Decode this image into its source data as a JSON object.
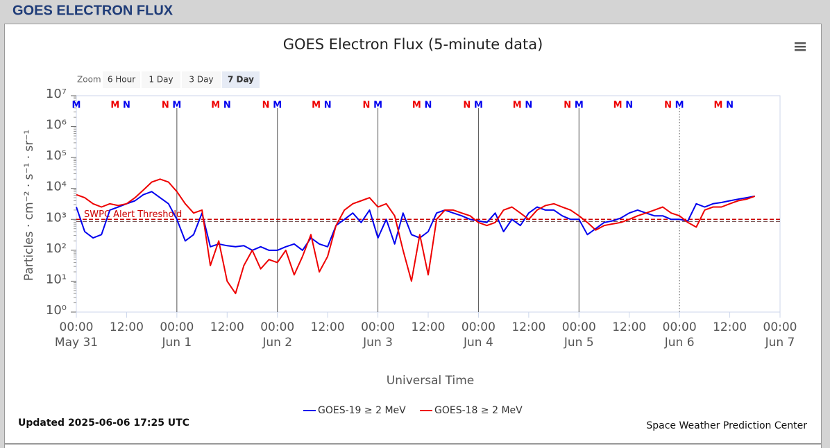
{
  "header": {
    "title": "GOES ELECTRON FLUX"
  },
  "range_selector": {
    "label": "Zoom",
    "buttons": [
      "6 Hour",
      "1 Day",
      "3 Day",
      "7 Day"
    ],
    "selected": 3
  },
  "chart_data": {
    "type": "line",
    "title": "GOES Electron Flux (5-minute data)",
    "x_label": "Universal Time",
    "y_label": "Particles · cm⁻² · s⁻¹ · sr⁻¹",
    "log_scale": true,
    "ylim": [
      1,
      10000000
    ],
    "yticks": [
      {
        "value": 1,
        "label": "10⁰"
      },
      {
        "value": 10,
        "label": "10¹"
      },
      {
        "value": 100,
        "label": "10²"
      },
      {
        "value": 1000,
        "label": "10³"
      },
      {
        "value": 10000,
        "label": "10⁴"
      },
      {
        "value": 100000,
        "label": "10⁵"
      },
      {
        "value": 1000000,
        "label": "10⁶"
      },
      {
        "value": 10000000,
        "label": "10⁷"
      }
    ],
    "xlim": [
      "05-31 00:00",
      "06-07 00:00"
    ],
    "xticks": [
      {
        "value": "05-31 00:00",
        "label": "00:00",
        "date": "May 31"
      },
      {
        "value": "05-31 12:00",
        "label": "12:00"
      },
      {
        "value": "06-01 00:00",
        "label": "00:00",
        "date": "Jun 1"
      },
      {
        "value": "06-01 12:00",
        "label": "12:00"
      },
      {
        "value": "06-02 00:00",
        "label": "00:00",
        "date": "Jun 2"
      },
      {
        "value": "06-02 12:00",
        "label": "12:00"
      },
      {
        "value": "06-03 00:00",
        "label": "00:00",
        "date": "Jun 3"
      },
      {
        "value": "06-03 12:00",
        "label": "12:00"
      },
      {
        "value": "06-04 00:00",
        "label": "00:00",
        "date": "Jun 4"
      },
      {
        "value": "06-04 12:00",
        "label": "12:00"
      },
      {
        "value": "06-05 00:00",
        "label": "00:00",
        "date": "Jun 5"
      },
      {
        "value": "06-05 12:00",
        "label": "12:00"
      },
      {
        "value": "06-06 00:00",
        "label": "00:00",
        "date": "Jun 6"
      },
      {
        "value": "06-06 12:00",
        "label": "12:00"
      },
      {
        "value": "06-07 00:00",
        "label": "00:00",
        "date": "Jun 7"
      }
    ],
    "x": [
      "05-31 00:00",
      "05-31 02:00",
      "05-31 04:00",
      "05-31 06:00",
      "05-31 08:00",
      "05-31 10:00",
      "05-31 12:00",
      "05-31 14:00",
      "05-31 16:00",
      "05-31 18:00",
      "05-31 20:00",
      "05-31 22:00",
      "06-01 00:00",
      "06-01 02:00",
      "06-01 04:00",
      "06-01 06:00",
      "06-01 08:00",
      "06-01 10:00",
      "06-01 12:00",
      "06-01 14:00",
      "06-01 16:00",
      "06-01 18:00",
      "06-01 20:00",
      "06-01 22:00",
      "06-02 00:00",
      "06-02 02:00",
      "06-02 04:00",
      "06-02 06:00",
      "06-02 08:00",
      "06-02 10:00",
      "06-02 12:00",
      "06-02 14:00",
      "06-02 16:00",
      "06-02 18:00",
      "06-02 20:00",
      "06-02 22:00",
      "06-03 00:00",
      "06-03 02:00",
      "06-03 04:00",
      "06-03 06:00",
      "06-03 08:00",
      "06-03 10:00",
      "06-03 12:00",
      "06-03 14:00",
      "06-03 16:00",
      "06-03 18:00",
      "06-03 20:00",
      "06-03 22:00",
      "06-04 00:00",
      "06-04 02:00",
      "06-04 04:00",
      "06-04 06:00",
      "06-04 08:00",
      "06-04 10:00",
      "06-04 12:00",
      "06-04 14:00",
      "06-04 16:00",
      "06-04 18:00",
      "06-04 20:00",
      "06-04 22:00",
      "06-05 00:00",
      "06-05 02:00",
      "06-05 04:00",
      "06-05 06:00",
      "06-05 08:00",
      "06-05 10:00",
      "06-05 12:00",
      "06-05 14:00",
      "06-05 16:00",
      "06-05 18:00",
      "06-05 20:00",
      "06-05 22:00",
      "06-06 00:00",
      "06-06 02:00",
      "06-06 04:00",
      "06-06 06:00",
      "06-06 08:00",
      "06-06 10:00",
      "06-06 12:00",
      "06-06 14:00",
      "06-06 16:00",
      "06-06 18:00"
    ],
    "series": [
      {
        "name": "GOES-19 ≥ 2 MeV",
        "color": "#0000ee",
        "values": [
          2500,
          400,
          250,
          320,
          2000,
          2500,
          3200,
          4000,
          6300,
          7900,
          5000,
          3200,
          1000,
          200,
          320,
          1600,
          130,
          160,
          140,
          130,
          140,
          100,
          130,
          100,
          100,
          130,
          160,
          100,
          250,
          160,
          130,
          630,
          1000,
          1600,
          790,
          2000,
          250,
          1000,
          160,
          1600,
          320,
          250,
          400,
          1600,
          2000,
          1600,
          1300,
          1000,
          890,
          790,
          1600,
          400,
          1000,
          630,
          1600,
          2500,
          2000,
          2000,
          1300,
          1000,
          1000,
          320,
          500,
          790,
          890,
          1100,
          1600,
          2000,
          1600,
          1300,
          1300,
          1000,
          1000,
          890,
          3200,
          2500,
          3200,
          3500,
          4000,
          4500,
          5000,
          5600
        ],
        "markers": [
          {
            "label": "M",
            "x": "05-31 00:00"
          },
          {
            "label": "N",
            "x": "05-31 12:00"
          },
          {
            "label": "M",
            "x": "06-01 00:00"
          },
          {
            "label": "N",
            "x": "06-01 12:00"
          },
          {
            "label": "M",
            "x": "06-02 00:00"
          },
          {
            "label": "N",
            "x": "06-02 12:00"
          },
          {
            "label": "M",
            "x": "06-03 00:00"
          },
          {
            "label": "N",
            "x": "06-03 12:00"
          },
          {
            "label": "M",
            "x": "06-04 00:00"
          },
          {
            "label": "N",
            "x": "06-04 12:00"
          },
          {
            "label": "M",
            "x": "06-05 00:00"
          },
          {
            "label": "N",
            "x": "06-05 12:00"
          },
          {
            "label": "M",
            "x": "06-06 00:00"
          },
          {
            "label": "N",
            "x": "06-06 12:00"
          }
        ]
      },
      {
        "name": "GOES-18 ≥ 2 MeV",
        "color": "#ee0000",
        "values": [
          6300,
          5000,
          3200,
          2500,
          3200,
          2800,
          3200,
          5000,
          8900,
          16000,
          20000,
          16000,
          7900,
          3200,
          1600,
          2000,
          32,
          200,
          10,
          4,
          32,
          100,
          25,
          50,
          40,
          100,
          16,
          63,
          320,
          20,
          63,
          630,
          2000,
          3200,
          4000,
          5000,
          2500,
          3200,
          1300,
          100,
          10,
          320,
          16,
          1000,
          2000,
          2000,
          1600,
          1300,
          790,
          630,
          790,
          2000,
          2500,
          1600,
          1000,
          2000,
          2800,
          3200,
          2500,
          2000,
          1300,
          790,
          450,
          630,
          710,
          790,
          1000,
          1300,
          1600,
          2000,
          2500,
          1600,
          1300,
          790,
          560,
          2000,
          2500,
          2500,
          3200,
          4000,
          4500,
          5600
        ],
        "markers": [
          {
            "label": "M",
            "x": "05-31 09:15"
          },
          {
            "label": "N",
            "x": "05-31 21:15"
          },
          {
            "label": "M",
            "x": "06-01 09:15"
          },
          {
            "label": "N",
            "x": "06-01 21:15"
          },
          {
            "label": "M",
            "x": "06-02 09:15"
          },
          {
            "label": "N",
            "x": "06-02 21:15"
          },
          {
            "label": "M",
            "x": "06-03 09:15"
          },
          {
            "label": "N",
            "x": "06-03 21:15"
          },
          {
            "label": "M",
            "x": "06-04 09:15"
          },
          {
            "label": "N",
            "x": "06-04 21:15"
          },
          {
            "label": "M",
            "x": "06-05 09:15"
          },
          {
            "label": "N",
            "x": "06-05 21:15"
          },
          {
            "label": "M",
            "x": "06-06 09:15"
          }
        ]
      }
    ],
    "threshold": {
      "value": 1000,
      "label": "SWPC Alert Threshold",
      "color": "#cc0000"
    },
    "updated": "Updated 2025-06-06 17:25 UTC",
    "credit": "Space Weather Prediction Center"
  }
}
